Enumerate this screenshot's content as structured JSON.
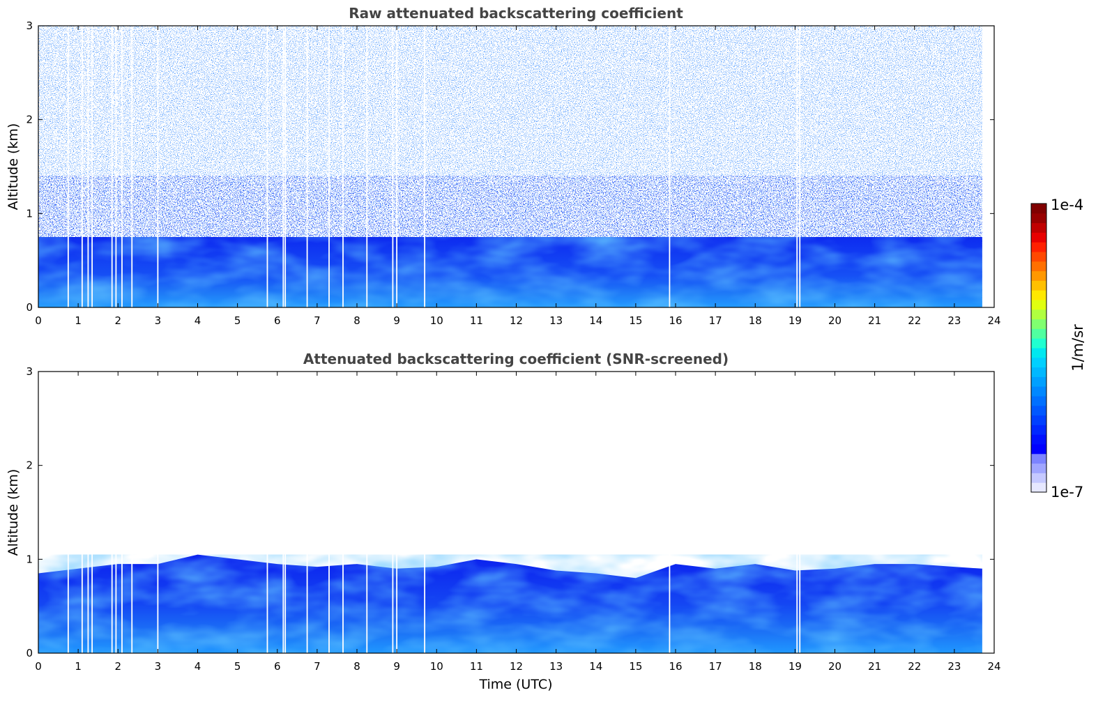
{
  "chart_data": [
    {
      "type": "heatmap",
      "title": "Raw attenuated backscattering coefficient",
      "xlabel": "",
      "ylabel": "Altitude (km)",
      "xlim": [
        0,
        24
      ],
      "ylim": [
        0,
        3
      ],
      "x_ticks": [
        "0",
        "1",
        "2",
        "3",
        "4",
        "5",
        "6",
        "7",
        "8",
        "9",
        "10",
        "11",
        "12",
        "13",
        "14",
        "15",
        "16",
        "17",
        "18",
        "19",
        "20",
        "21",
        "22",
        "23",
        "24"
      ],
      "y_ticks": [
        "0",
        "1",
        "2",
        "3"
      ],
      "data_end_hour": 23.7,
      "dropout_hours": [
        0.75,
        1.1,
        1.25,
        1.35,
        1.85,
        1.95,
        2.1,
        2.35,
        3.0,
        5.75,
        6.15,
        6.2,
        6.75,
        7.3,
        7.65,
        8.25,
        8.9,
        9.0,
        9.7,
        15.85,
        19.05,
        19.12
      ],
      "grid": false,
      "layers_km": {
        "surface_bright": 0.25,
        "boundary_layer_top": 0.75,
        "noise_to_top": 3.0
      }
    },
    {
      "type": "heatmap",
      "title": "Attenuated backscattering coefficient (SNR-screened)",
      "xlabel": "Time (UTC)",
      "ylabel": "Altitude (km)",
      "xlim": [
        0,
        24
      ],
      "ylim": [
        0,
        3
      ],
      "x_ticks": [
        "0",
        "1",
        "2",
        "3",
        "4",
        "5",
        "6",
        "7",
        "8",
        "9",
        "10",
        "11",
        "12",
        "13",
        "14",
        "15",
        "16",
        "17",
        "18",
        "19",
        "20",
        "21",
        "22",
        "23",
        "24"
      ],
      "y_ticks": [
        "0",
        "1",
        "2",
        "3"
      ],
      "data_end_hour": 23.7,
      "dropout_hours": [
        0.75,
        1.1,
        1.25,
        1.35,
        1.85,
        1.95,
        2.1,
        2.35,
        3.0,
        5.75,
        6.15,
        6.2,
        6.75,
        7.3,
        7.65,
        8.25,
        8.9,
        9.0,
        9.7,
        15.85,
        19.05,
        19.12
      ],
      "grid": false,
      "boundary_layer_top_km": [
        [
          0,
          0.85
        ],
        [
          1,
          0.9
        ],
        [
          2,
          0.95
        ],
        [
          3,
          0.95
        ],
        [
          4,
          1.05
        ],
        [
          5,
          1.0
        ],
        [
          6,
          0.95
        ],
        [
          7,
          0.92
        ],
        [
          8,
          0.95
        ],
        [
          9,
          0.9
        ],
        [
          10,
          0.92
        ],
        [
          11,
          1.0
        ],
        [
          12,
          0.95
        ],
        [
          13,
          0.88
        ],
        [
          14,
          0.85
        ],
        [
          15,
          0.8
        ],
        [
          16,
          0.95
        ],
        [
          17,
          0.9
        ],
        [
          18,
          0.95
        ],
        [
          19,
          0.88
        ],
        [
          20,
          0.9
        ],
        [
          21,
          0.95
        ],
        [
          22,
          0.95
        ],
        [
          23,
          0.92
        ],
        [
          23.7,
          0.9
        ]
      ]
    }
  ],
  "colorbar": {
    "label": "1/m/sr",
    "max_label": "1e-4",
    "min_label": "1e-7",
    "colormap": "jet",
    "scale": "log"
  },
  "colors": {
    "background": "#ffffff",
    "title": "#444444",
    "noise_blue": "#1a3cff",
    "deep_blue": "#0a1fe6",
    "surface_light_blue": "#1e90ff"
  }
}
